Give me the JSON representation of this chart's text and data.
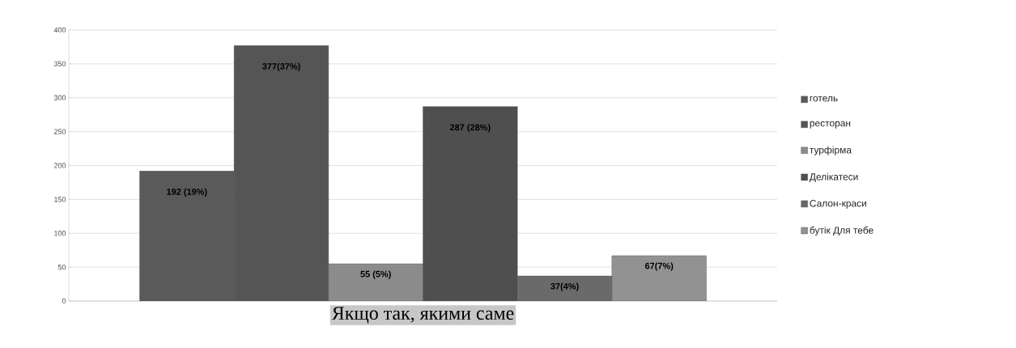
{
  "chart_data": {
    "type": "bar",
    "xlabel": "Якщо так, якими саме",
    "categories": [
      null
    ],
    "series": [
      {
        "name": "готель",
        "color": "#5a5a5a",
        "values": [
          192
        ],
        "value_labels": [
          "192 (19%)"
        ]
      },
      {
        "name": "ресторан",
        "color": "#555555",
        "values": [
          377
        ],
        "value_labels": [
          "377(37%)"
        ]
      },
      {
        "name": "турфірма",
        "color": "#8c8c8c",
        "values": [
          55
        ],
        "value_labels": [
          "55 (5%)"
        ]
      },
      {
        "name": "Делікатеси",
        "color": "#4f4f4f",
        "values": [
          287
        ],
        "value_labels": [
          "287 (28%)"
        ]
      },
      {
        "name": "Салон-краси",
        "color": "#6a6a6a",
        "values": [
          37
        ],
        "value_labels": [
          "37(4%)"
        ]
      },
      {
        "name": "бутік Для тебе",
        "color": "#929292",
        "values": [
          67
        ],
        "value_labels": [
          "67(7%)"
        ]
      }
    ],
    "ylim": [
      0,
      400
    ],
    "yticks": [
      0,
      50,
      100,
      150,
      200,
      250,
      300,
      350,
      400
    ],
    "grid": "y",
    "legend": "right"
  }
}
